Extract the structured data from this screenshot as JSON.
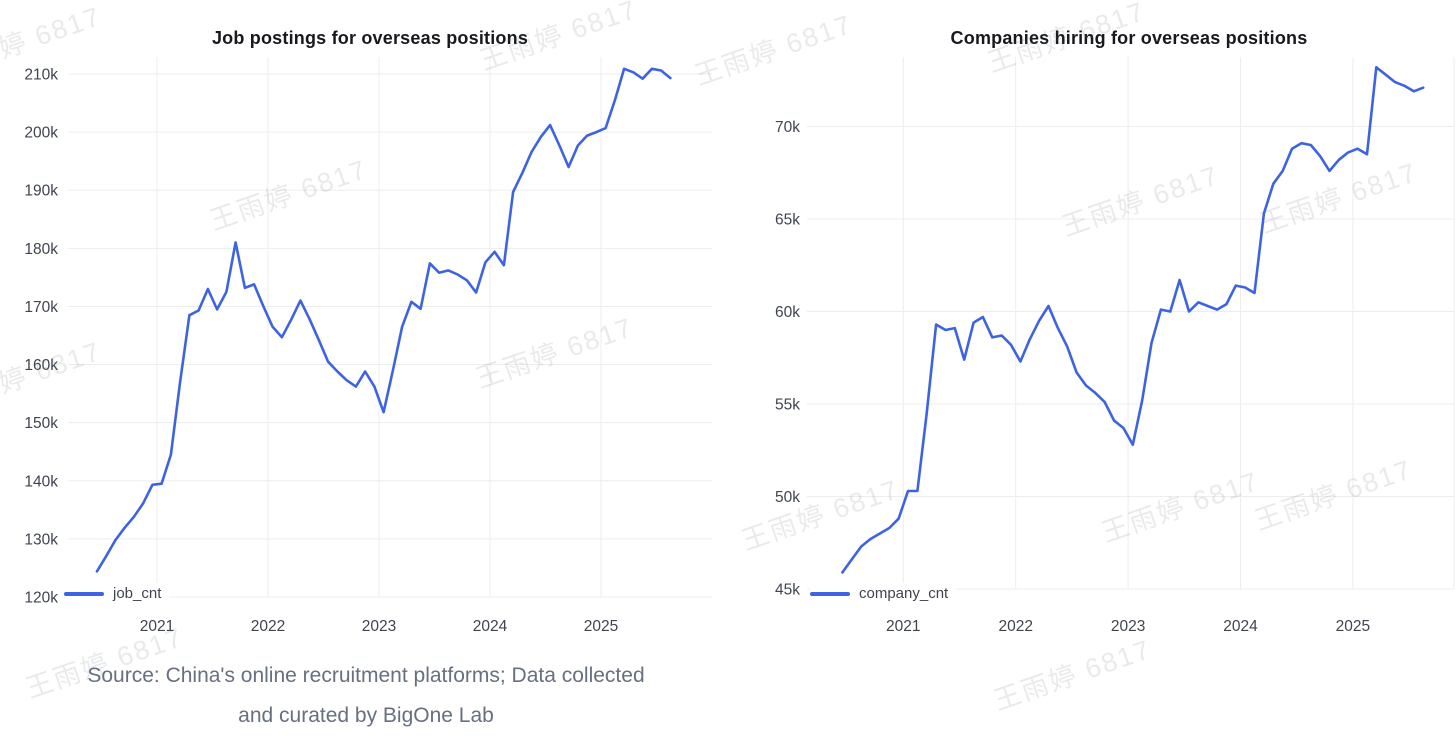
{
  "page": {
    "background": "#ffffff"
  },
  "watermark": {
    "text": "王雨婷 6817",
    "rotation_deg": -19,
    "color_rgba": "rgba(100,105,115,0.14)",
    "positions": [
      [
        -56,
        47
      ],
      [
        480,
        40
      ],
      [
        695,
        55
      ],
      [
        988,
        42
      ],
      [
        210,
        200
      ],
      [
        1062,
        206
      ],
      [
        1260,
        203
      ],
      [
        -56,
        382
      ],
      [
        476,
        358
      ],
      [
        742,
        520
      ],
      [
        1102,
        512
      ],
      [
        1255,
        500
      ],
      [
        26,
        668
      ],
      [
        994,
        680
      ]
    ]
  },
  "source_note": {
    "line1": "Source: China's online recruitment platforms; Data collected",
    "line2": "and curated by BigOne Lab"
  },
  "chart_data": [
    {
      "type": "line",
      "title": "Job postings for overseas positions",
      "legend": "job_cnt",
      "line_color": "#3E63E2",
      "grid": true,
      "x_unit": "month",
      "x_start": "2020-06",
      "x_end": "2025-08",
      "x_tick_labels": [
        "2021",
        "2022",
        "2023",
        "2024",
        "2025"
      ],
      "y_tick_labels": [
        "120k",
        "130k",
        "140k",
        "150k",
        "160k",
        "170k",
        "180k",
        "190k",
        "200k",
        "210k"
      ],
      "y_range_thousands": [
        120,
        210
      ],
      "values_thousands": [
        124.4,
        127,
        129.8,
        131.9,
        133.8,
        136.1,
        139.3,
        139.5,
        144.5,
        157,
        168.5,
        169.3,
        173,
        169.5,
        172.5,
        181,
        173.2,
        173.8,
        170,
        166.5,
        164.7,
        167.7,
        171,
        167.8,
        164.2,
        160.5,
        158.8,
        157.3,
        156.2,
        158.8,
        156.2,
        151.8,
        159,
        166.5,
        170.8,
        169.6,
        177.4,
        175.8,
        176.2,
        175.5,
        174.5,
        172.4,
        177.6,
        179.4,
        177.1,
        189.7,
        193,
        196.6,
        199.2,
        201.2,
        197.7,
        194,
        197.7,
        199.4,
        200,
        200.7,
        205.5,
        210.9,
        210.3,
        209.2,
        210.9,
        210.6,
        209.3
      ]
    },
    {
      "type": "line",
      "title": "Companies hiring for overseas positions",
      "legend": "company_cnt",
      "line_color": "#3E63E2",
      "grid": true,
      "x_unit": "month",
      "x_start": "2020-06",
      "x_end": "2025-08",
      "x_tick_labels": [
        "2021",
        "2022",
        "2023",
        "2024",
        "2025"
      ],
      "y_tick_labels": [
        "45k",
        "50k",
        "55k",
        "60k",
        "65k",
        "70k"
      ],
      "y_range_thousands": [
        45,
        70
      ],
      "values_thousands": [
        45.9,
        46.6,
        47.3,
        47.7,
        48,
        48.3,
        48.8,
        50.3,
        50.3,
        54.5,
        59.3,
        59,
        59.1,
        57.4,
        59.4,
        59.7,
        58.6,
        58.7,
        58.2,
        57.3,
        58.5,
        59.5,
        60.3,
        59.1,
        58.1,
        56.7,
        56,
        55.6,
        55.1,
        54.1,
        53.7,
        52.8,
        55.2,
        58.3,
        60.1,
        60,
        61.7,
        60,
        60.5,
        60.3,
        60.1,
        60.4,
        61.4,
        61.3,
        61,
        65.3,
        66.9,
        67.6,
        68.8,
        69.1,
        69,
        68.4,
        67.6,
        68.2,
        68.6,
        68.8,
        68.5,
        73.2,
        72.8,
        72.4,
        72.2,
        71.9,
        72.1
      ]
    }
  ]
}
